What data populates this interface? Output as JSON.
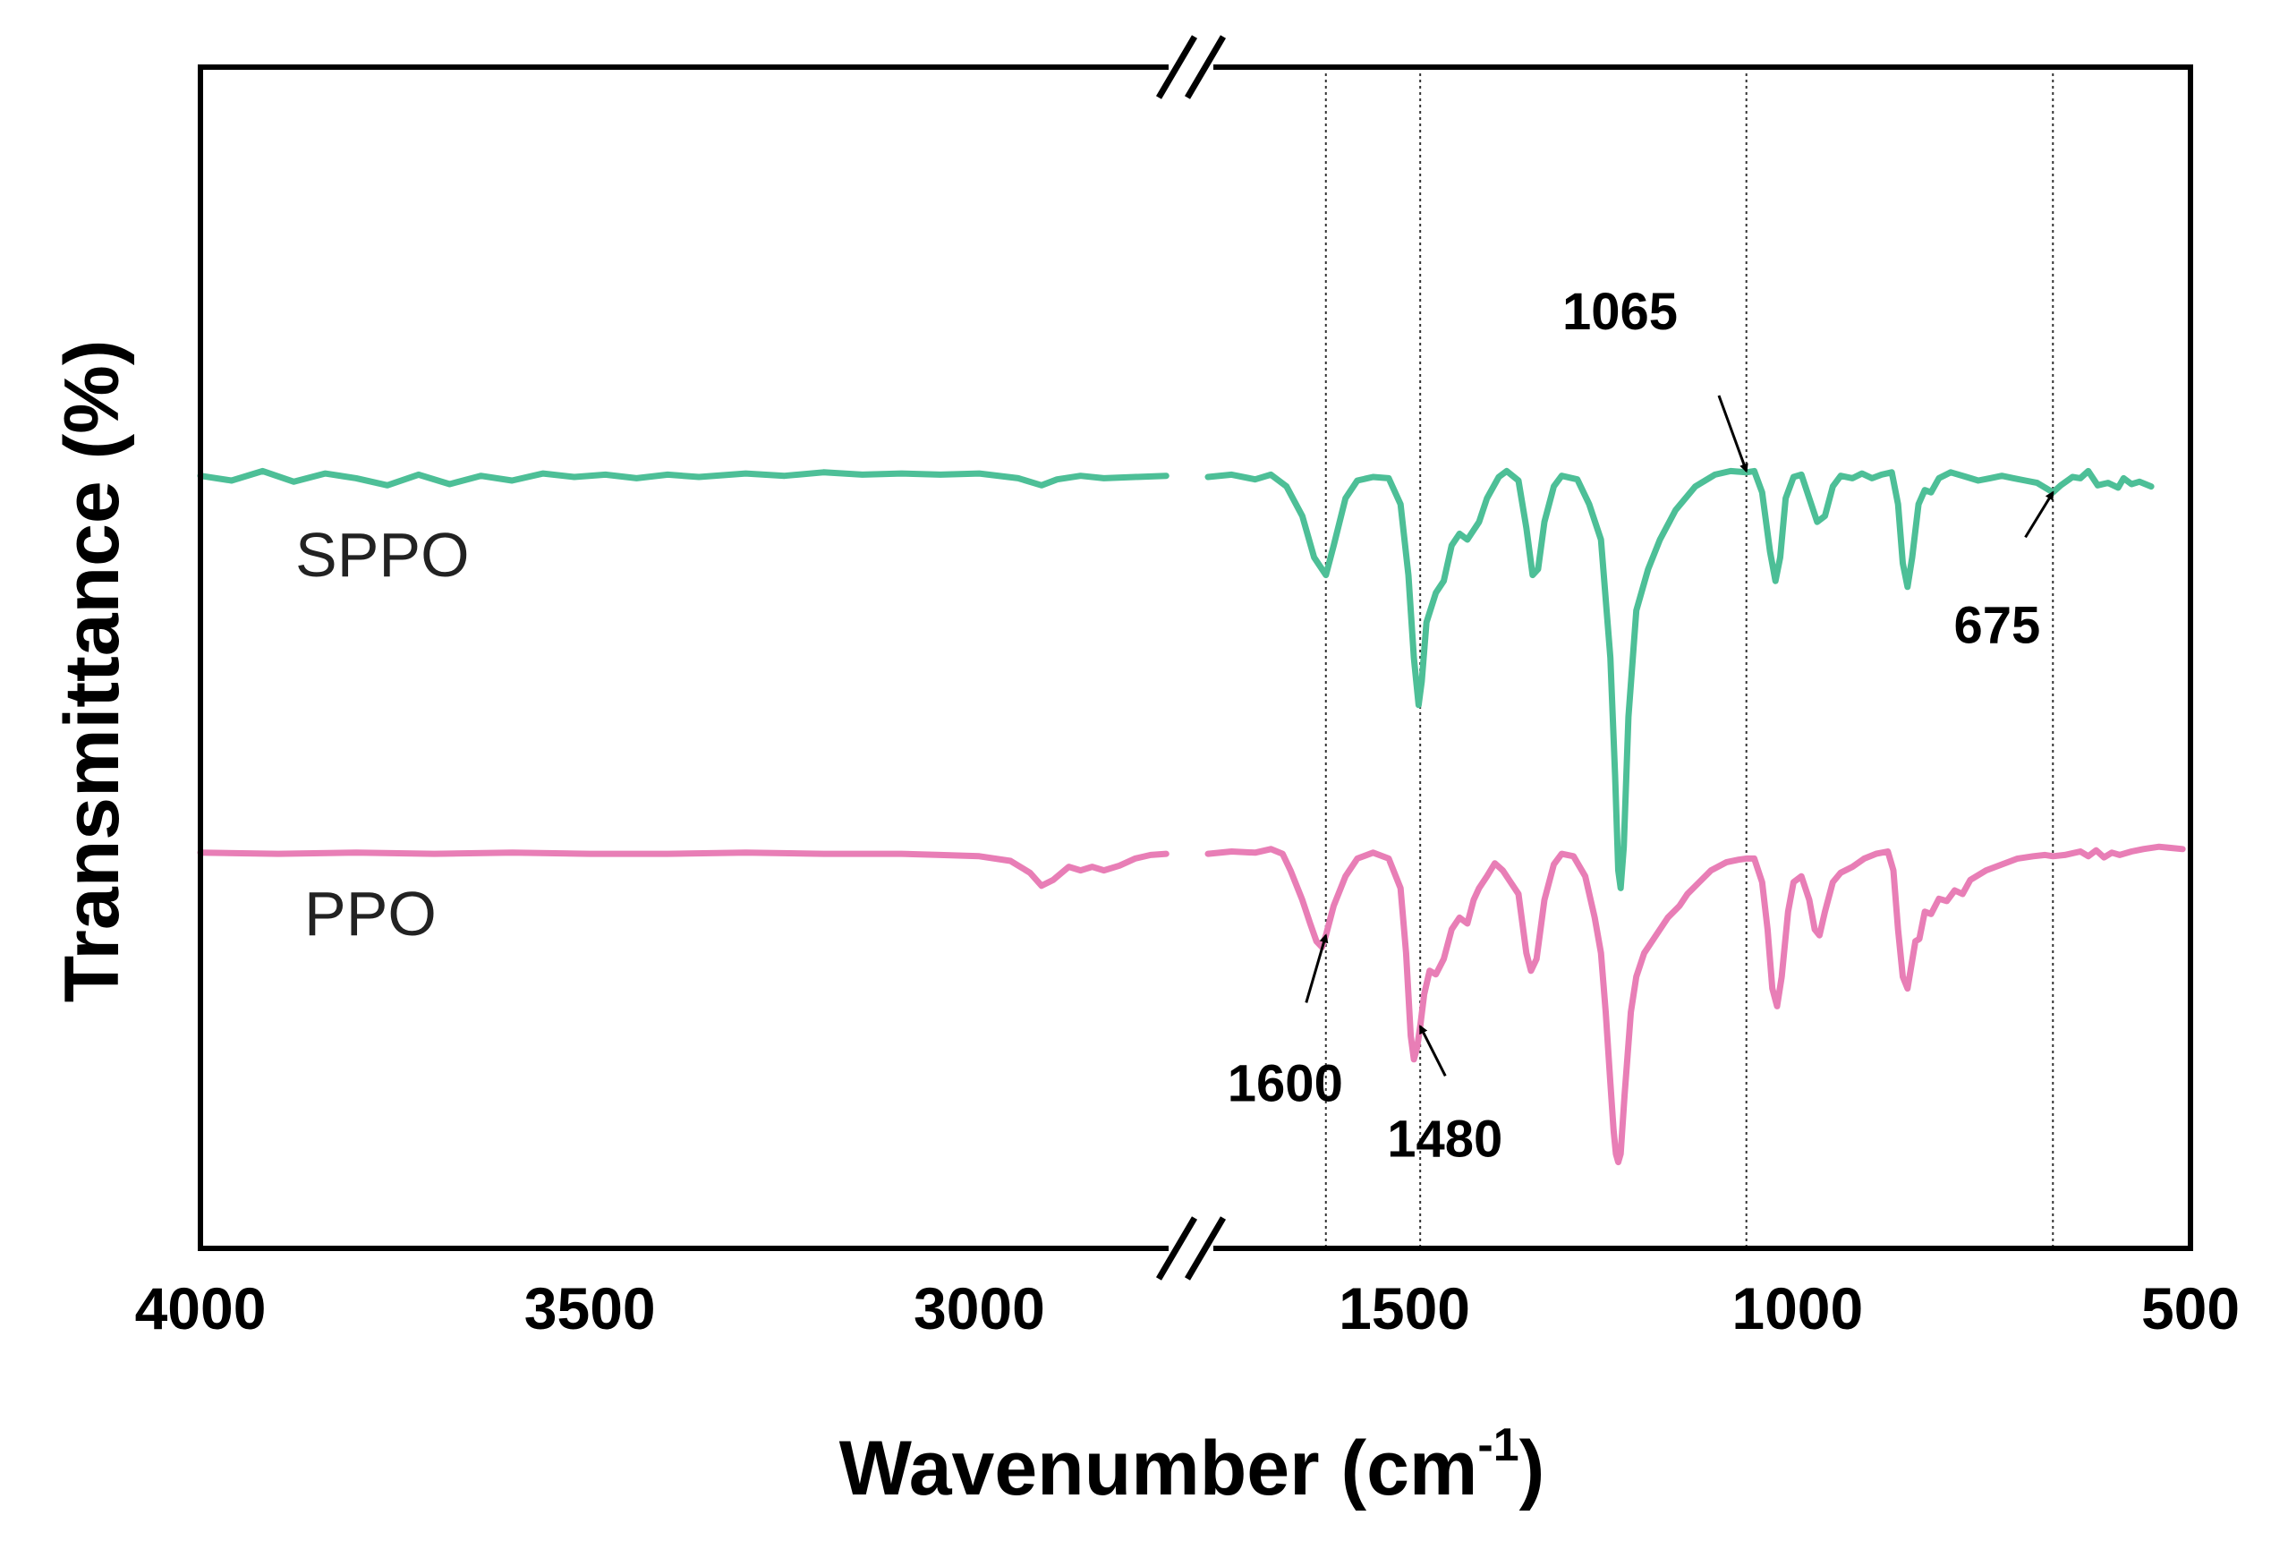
{
  "chart_data": {
    "type": "line",
    "title": "",
    "xlabel": "Wavenumber (cm",
    "xlabel_sup": "-1",
    "xlabel_end": ")",
    "ylabel": "Transmittance (%)",
    "x_reversed": true,
    "x_break": {
      "from": 2750,
      "to": 1750
    },
    "x_segments": [
      {
        "range": [
          4000,
          2750
        ],
        "ticks": [
          4000,
          3500,
          3000
        ]
      },
      {
        "range": [
          1750,
          500
        ],
        "ticks": [
          1500,
          1000,
          500
        ]
      }
    ],
    "tick_labels": [
      "4000",
      "3500",
      "3000",
      "1500",
      "1000",
      "500"
    ],
    "ylim": [
      0,
      100
    ],
    "y_ticks_shown": false,
    "reference_lines": [
      1600,
      1480,
      1065,
      675
    ],
    "series": [
      {
        "name": "SPPO",
        "color": "#4dbf97",
        "points": [
          [
            4000,
            65.4
          ],
          [
            3960,
            65.0
          ],
          [
            3920,
            65.8
          ],
          [
            3880,
            64.9
          ],
          [
            3840,
            65.6
          ],
          [
            3800,
            65.2
          ],
          [
            3760,
            64.6
          ],
          [
            3720,
            65.5
          ],
          [
            3680,
            64.7
          ],
          [
            3640,
            65.4
          ],
          [
            3600,
            65.0
          ],
          [
            3560,
            65.6
          ],
          [
            3520,
            65.3
          ],
          [
            3480,
            65.5
          ],
          [
            3440,
            65.2
          ],
          [
            3400,
            65.5
          ],
          [
            3360,
            65.3
          ],
          [
            3300,
            65.6
          ],
          [
            3250,
            65.4
          ],
          [
            3200,
            65.7
          ],
          [
            3150,
            65.5
          ],
          [
            3100,
            65.6
          ],
          [
            3050,
            65.5
          ],
          [
            3000,
            65.6
          ],
          [
            2950,
            65.2
          ],
          [
            2920,
            64.6
          ],
          [
            2900,
            65.1
          ],
          [
            2870,
            65.4
          ],
          [
            2840,
            65.2
          ],
          [
            2800,
            65.3
          ],
          [
            2760,
            65.4
          ],
          [
            1750,
            65.3
          ],
          [
            1720,
            65.5
          ],
          [
            1690,
            65.1
          ],
          [
            1670,
            65.5
          ],
          [
            1650,
            64.5
          ],
          [
            1630,
            62.0
          ],
          [
            1615,
            58.5
          ],
          [
            1600,
            57.0
          ],
          [
            1590,
            59.5
          ],
          [
            1575,
            63.5
          ],
          [
            1560,
            65.0
          ],
          [
            1540,
            65.3
          ],
          [
            1520,
            65.2
          ],
          [
            1505,
            63.0
          ],
          [
            1495,
            57.0
          ],
          [
            1488,
            50.0
          ],
          [
            1482,
            46.0
          ],
          [
            1478,
            48.0
          ],
          [
            1472,
            53.0
          ],
          [
            1460,
            55.5
          ],
          [
            1450,
            56.5
          ],
          [
            1440,
            59.5
          ],
          [
            1430,
            60.5
          ],
          [
            1420,
            60.0
          ],
          [
            1405,
            61.5
          ],
          [
            1395,
            63.5
          ],
          [
            1380,
            65.3
          ],
          [
            1370,
            65.8
          ],
          [
            1355,
            65.0
          ],
          [
            1345,
            61.0
          ],
          [
            1337,
            57.0
          ],
          [
            1330,
            57.5
          ],
          [
            1322,
            61.5
          ],
          [
            1310,
            64.5
          ],
          [
            1300,
            65.4
          ],
          [
            1280,
            65.1
          ],
          [
            1265,
            63.0
          ],
          [
            1250,
            60.0
          ],
          [
            1238,
            50.0
          ],
          [
            1232,
            40.0
          ],
          [
            1228,
            32.0
          ],
          [
            1225,
            30.5
          ],
          [
            1221,
            34.0
          ],
          [
            1215,
            45.0
          ],
          [
            1205,
            54.0
          ],
          [
            1190,
            57.5
          ],
          [
            1175,
            60.0
          ],
          [
            1155,
            62.5
          ],
          [
            1130,
            64.5
          ],
          [
            1105,
            65.5
          ],
          [
            1085,
            65.8
          ],
          [
            1065,
            65.7
          ],
          [
            1055,
            65.8
          ],
          [
            1045,
            64.0
          ],
          [
            1035,
            59.0
          ],
          [
            1028,
            56.5
          ],
          [
            1022,
            58.5
          ],
          [
            1015,
            63.5
          ],
          [
            1005,
            65.3
          ],
          [
            995,
            65.5
          ],
          [
            985,
            63.5
          ],
          [
            975,
            61.5
          ],
          [
            965,
            62.0
          ],
          [
            955,
            64.5
          ],
          [
            945,
            65.4
          ],
          [
            930,
            65.2
          ],
          [
            918,
            65.6
          ],
          [
            905,
            65.2
          ],
          [
            893,
            65.5
          ],
          [
            880,
            65.7
          ],
          [
            872,
            63.0
          ],
          [
            866,
            58.0
          ],
          [
            860,
            56.0
          ],
          [
            854,
            58.5
          ],
          [
            846,
            63.0
          ],
          [
            838,
            64.2
          ],
          [
            830,
            64.0
          ],
          [
            820,
            65.2
          ],
          [
            805,
            65.7
          ],
          [
            785,
            65.3
          ],
          [
            770,
            65.0
          ],
          [
            755,
            65.2
          ],
          [
            740,
            65.4
          ],
          [
            725,
            65.2
          ],
          [
            710,
            65.0
          ],
          [
            695,
            64.8
          ],
          [
            685,
            64.4
          ],
          [
            675,
            64.0
          ],
          [
            665,
            64.6
          ],
          [
            650,
            65.3
          ],
          [
            640,
            65.2
          ],
          [
            630,
            65.8
          ],
          [
            618,
            64.6
          ],
          [
            605,
            64.8
          ],
          [
            592,
            64.4
          ],
          [
            585,
            65.2
          ],
          [
            575,
            64.7
          ],
          [
            565,
            64.9
          ],
          [
            550,
            64.5
          ]
        ]
      },
      {
        "name": "PPO",
        "color": "#e87eb6",
        "points": [
          [
            4000,
            33.5
          ],
          [
            3900,
            33.4
          ],
          [
            3800,
            33.5
          ],
          [
            3700,
            33.4
          ],
          [
            3600,
            33.5
          ],
          [
            3500,
            33.4
          ],
          [
            3400,
            33.4
          ],
          [
            3300,
            33.5
          ],
          [
            3200,
            33.4
          ],
          [
            3100,
            33.4
          ],
          [
            3050,
            33.3
          ],
          [
            3000,
            33.2
          ],
          [
            2960,
            32.8
          ],
          [
            2935,
            31.8
          ],
          [
            2920,
            30.7
          ],
          [
            2905,
            31.2
          ],
          [
            2885,
            32.3
          ],
          [
            2870,
            32.0
          ],
          [
            2855,
            32.3
          ],
          [
            2840,
            32.0
          ],
          [
            2820,
            32.4
          ],
          [
            2800,
            33.0
          ],
          [
            2780,
            33.3
          ],
          [
            2760,
            33.4
          ],
          [
            1750,
            33.4
          ],
          [
            1720,
            33.6
          ],
          [
            1690,
            33.5
          ],
          [
            1670,
            33.8
          ],
          [
            1655,
            33.4
          ],
          [
            1645,
            32.0
          ],
          [
            1630,
            29.5
          ],
          [
            1620,
            27.5
          ],
          [
            1612,
            26.0
          ],
          [
            1605,
            25.5
          ],
          [
            1600,
            26.5
          ],
          [
            1590,
            29.0
          ],
          [
            1575,
            31.5
          ],
          [
            1560,
            33.0
          ],
          [
            1540,
            33.5
          ],
          [
            1520,
            33.0
          ],
          [
            1505,
            30.5
          ],
          [
            1498,
            25.0
          ],
          [
            1492,
            18.0
          ],
          [
            1488,
            16.0
          ],
          [
            1484,
            17.0
          ],
          [
            1480,
            18.8
          ],
          [
            1475,
            21.5
          ],
          [
            1468,
            23.5
          ],
          [
            1460,
            23.2
          ],
          [
            1450,
            24.5
          ],
          [
            1440,
            27.0
          ],
          [
            1430,
            28.0
          ],
          [
            1420,
            27.5
          ],
          [
            1412,
            29.5
          ],
          [
            1405,
            30.5
          ],
          [
            1395,
            31.5
          ],
          [
            1385,
            32.6
          ],
          [
            1375,
            32.0
          ],
          [
            1365,
            31.0
          ],
          [
            1355,
            30.0
          ],
          [
            1345,
            25.0
          ],
          [
            1339,
            23.5
          ],
          [
            1332,
            24.5
          ],
          [
            1322,
            29.5
          ],
          [
            1310,
            32.5
          ],
          [
            1300,
            33.4
          ],
          [
            1285,
            33.2
          ],
          [
            1270,
            31.5
          ],
          [
            1258,
            28.0
          ],
          [
            1250,
            25.0
          ],
          [
            1244,
            20.0
          ],
          [
            1238,
            14.0
          ],
          [
            1234,
            10.0
          ],
          [
            1231,
            8.0
          ],
          [
            1228,
            7.3
          ],
          [
            1225,
            8.0
          ],
          [
            1220,
            13.0
          ],
          [
            1212,
            20.0
          ],
          [
            1205,
            23.0
          ],
          [
            1195,
            25.0
          ],
          [
            1180,
            26.5
          ],
          [
            1165,
            28.0
          ],
          [
            1150,
            29.0
          ],
          [
            1140,
            30.0
          ],
          [
            1125,
            31.0
          ],
          [
            1110,
            32.0
          ],
          [
            1090,
            32.7
          ],
          [
            1075,
            32.9
          ],
          [
            1065,
            33.0
          ],
          [
            1055,
            33.0
          ],
          [
            1045,
            31.0
          ],
          [
            1038,
            27.0
          ],
          [
            1032,
            22.0
          ],
          [
            1026,
            20.5
          ],
          [
            1020,
            23.0
          ],
          [
            1012,
            28.5
          ],
          [
            1005,
            31.0
          ],
          [
            995,
            31.5
          ],
          [
            985,
            29.5
          ],
          [
            978,
            27.0
          ],
          [
            972,
            26.5
          ],
          [
            965,
            28.5
          ],
          [
            955,
            31.0
          ],
          [
            945,
            31.8
          ],
          [
            930,
            32.3
          ],
          [
            915,
            33.0
          ],
          [
            900,
            33.4
          ],
          [
            885,
            33.6
          ],
          [
            878,
            32.0
          ],
          [
            872,
            27.0
          ],
          [
            866,
            23.0
          ],
          [
            860,
            22.0
          ],
          [
            855,
            24.0
          ],
          [
            850,
            26.0
          ],
          [
            845,
            26.2
          ],
          [
            838,
            28.5
          ],
          [
            830,
            28.3
          ],
          [
            820,
            29.6
          ],
          [
            810,
            29.4
          ],
          [
            800,
            30.3
          ],
          [
            790,
            30.0
          ],
          [
            780,
            31.2
          ],
          [
            760,
            32.0
          ],
          [
            740,
            32.5
          ],
          [
            720,
            33.0
          ],
          [
            700,
            33.2
          ],
          [
            685,
            33.3
          ],
          [
            675,
            33.2
          ],
          [
            660,
            33.3
          ],
          [
            640,
            33.6
          ],
          [
            630,
            33.2
          ],
          [
            620,
            33.7
          ],
          [
            610,
            33.1
          ],
          [
            600,
            33.5
          ],
          [
            590,
            33.3
          ],
          [
            575,
            33.6
          ],
          [
            560,
            33.8
          ],
          [
            540,
            34.0
          ],
          [
            525,
            33.9
          ],
          [
            510,
            33.8
          ]
        ]
      }
    ],
    "annotations": [
      {
        "text": "1065",
        "target": [
          1065,
          65.8
        ],
        "from": [
          1100,
          72.2
        ]
      },
      {
        "text": "675",
        "target": [
          675,
          64.0
        ],
        "from": [
          710,
          60.2
        ]
      },
      {
        "text": "1600",
        "target": [
          1600,
          26.5
        ],
        "from": [
          1625,
          20.8
        ]
      },
      {
        "text": "1480",
        "target": [
          1480,
          18.8
        ],
        "from": [
          1448,
          14.6
        ]
      }
    ]
  }
}
